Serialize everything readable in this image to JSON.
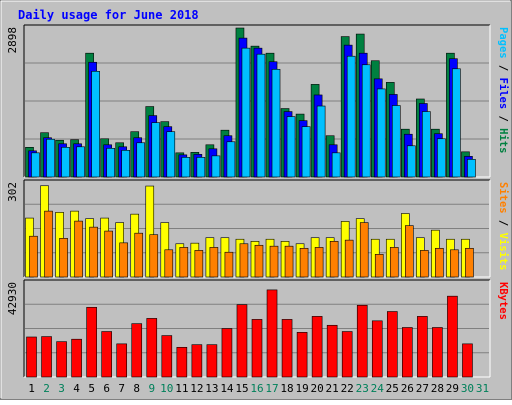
{
  "chart_data": {
    "type": "bar",
    "title": "Daily usage for June 2018",
    "categories": [
      "1",
      "2",
      "3",
      "4",
      "5",
      "6",
      "7",
      "8",
      "9",
      "10",
      "11",
      "12",
      "13",
      "14",
      "15",
      "16",
      "17",
      "18",
      "19",
      "20",
      "21",
      "22",
      "23",
      "24",
      "25",
      "26",
      "27",
      "28",
      "29",
      "30",
      "31"
    ],
    "weekend_days": [
      2,
      3,
      9,
      10,
      16,
      17,
      23,
      24,
      30,
      31
    ],
    "panels": [
      {
        "id": "hits",
        "max_label": "2898",
        "ylim": [
          0,
          3020
        ],
        "axis_label_parts": [
          {
            "text": "Pages",
            "color": "#00c0ff"
          },
          {
            "text": " / ",
            "color": "#000000"
          },
          {
            "text": "Files",
            "color": "#0000ff"
          },
          {
            "text": " / ",
            "color": "#000000"
          },
          {
            "text": "Hits",
            "color": "#008040"
          }
        ],
        "series": [
          {
            "name": "Hits",
            "color": "#008040",
            "values": [
              590,
              880,
              730,
              740,
              2460,
              760,
              680,
              900,
              1400,
              1100,
              480,
              490,
              640,
              930,
              2960,
              2600,
              2460,
              1360,
              1250,
              1840,
              820,
              2790,
              2840,
              2310,
              1880,
              950,
              1550,
              950,
              2460,
              500,
              0
            ]
          },
          {
            "name": "Files",
            "color": "#0000ff",
            "values": [
              520,
              780,
              660,
              660,
              2280,
              640,
              600,
              780,
              1220,
              1000,
              440,
              450,
              560,
              820,
              2760,
              2560,
              2290,
              1300,
              1120,
              1630,
              640,
              2620,
              2460,
              1950,
              1640,
              850,
              1460,
              860,
              2350,
              410,
              0
            ]
          },
          {
            "name": "Pages",
            "color": "#00c0ff",
            "values": [
              480,
              750,
              590,
              600,
              2100,
              570,
              530,
              680,
              1080,
              900,
              390,
              390,
              420,
              700,
              2560,
              2440,
              2140,
              1200,
              1000,
              1410,
              480,
              2400,
              2230,
              1750,
              1420,
              620,
              1300,
              760,
              2150,
              350,
              0
            ]
          }
        ]
      },
      {
        "id": "visits",
        "max_label": "302",
        "ylim": [
          0,
          321
        ],
        "axis_label_parts": [
          {
            "text": "Sites",
            "color": "#ff8000"
          },
          {
            "text": " / ",
            "color": "#000000"
          },
          {
            "text": "Visits",
            "color": "#ffff00"
          }
        ],
        "series": [
          {
            "name": "Visits",
            "color": "#ffff00",
            "values": [
              195,
              302,
              214,
              218,
              193,
              195,
              180,
              208,
              301,
              180,
              110,
              112,
              130,
              130,
              125,
              118,
              125,
              118,
              110,
              130,
              130,
              184,
              193,
              125,
              125,
              210,
              130,
              155,
              125,
              125,
              0
            ]
          },
          {
            "name": "Sites",
            "color": "#ff8000",
            "values": [
              135,
              218,
              128,
              185,
              165,
              152,
              113,
              145,
              140,
              90,
              98,
              88,
              98,
              82,
              110,
              105,
              102,
              102,
              95,
              98,
              118,
              122,
              180,
              75,
              98,
              170,
              88,
              95,
              90,
              95,
              0
            ]
          }
        ]
      },
      {
        "id": "kbytes",
        "max_label": "42930",
        "ylim": [
          0,
          48000
        ],
        "axis_label_parts": [
          {
            "text": "KBytes",
            "color": "#ff0000"
          }
        ],
        "series": [
          {
            "name": "KBytes",
            "color": "#ff0000",
            "values": [
              19800,
              20000,
              17500,
              18700,
              34500,
              22500,
              16400,
              26400,
              29000,
              20500,
              14700,
              16000,
              16000,
              24000,
              35800,
              28500,
              43100,
              28500,
              22100,
              30000,
              25600,
              22500,
              35500,
              27800,
              32400,
              24500,
              30000,
              24500,
              40000,
              16400,
              0
            ]
          }
        ]
      }
    ]
  }
}
